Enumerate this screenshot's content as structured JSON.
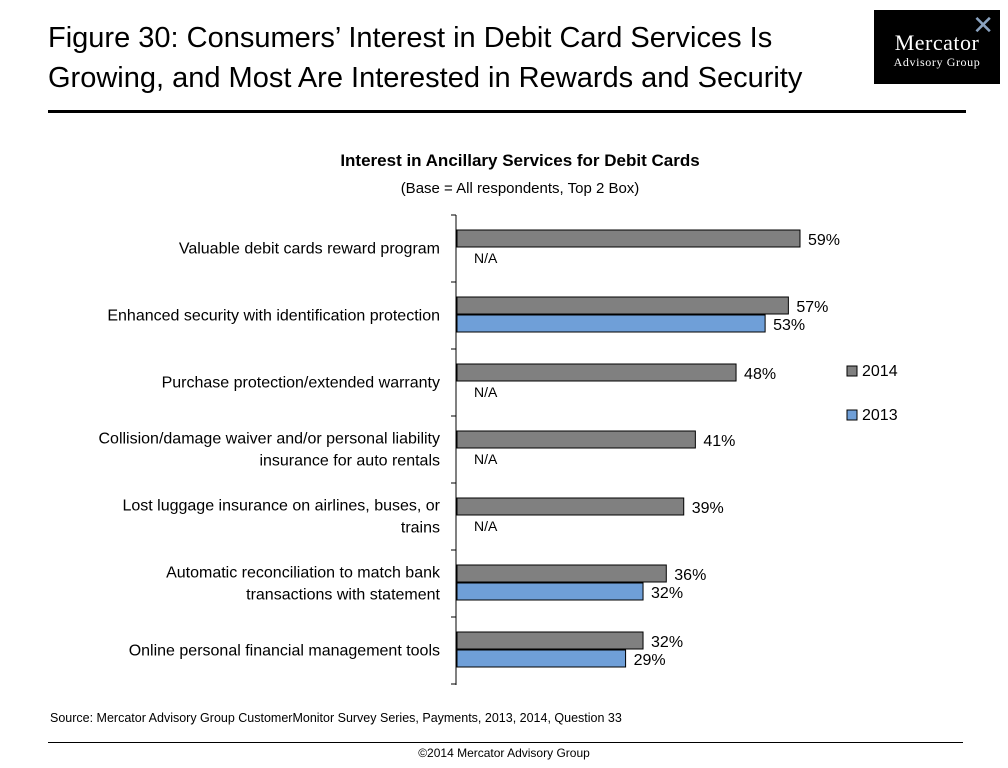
{
  "header": {
    "title_line1": "Figure 30: Consumers’ Interest in Debit Card Services Is",
    "title_line2": "Growing, and Most Are Interested in Rewards and Security"
  },
  "logo": {
    "line1": "Mercator",
    "line2": "Advisory Group"
  },
  "chart_data": {
    "type": "bar",
    "orientation": "horizontal",
    "title": "Interest in Ancillary Services for Debit Cards",
    "subtitle": "(Base = All respondents, Top 2 Box)",
    "categories": [
      [
        "Valuable debit cards reward program"
      ],
      [
        "Enhanced security with identification protection"
      ],
      [
        "Purchase protection/extended warranty"
      ],
      [
        "Collision/damage waiver and/or personal liability",
        "insurance for auto rentals"
      ],
      [
        "Lost luggage insurance on airlines, buses, or",
        "trains"
      ],
      [
        "Automatic reconciliation to match bank",
        "transactions with statement"
      ],
      [
        "Online personal financial management tools"
      ]
    ],
    "series": [
      {
        "name": "2014",
        "color": "#808080",
        "values": [
          59,
          57,
          48,
          41,
          39,
          36,
          32
        ]
      },
      {
        "name": "2013",
        "color": "#6f9fd8",
        "values": [
          null,
          53,
          null,
          null,
          null,
          32,
          29
        ]
      }
    ],
    "missing_label": "N/A",
    "value_suffix": "%",
    "legend_position": "right",
    "grid": false
  },
  "footer": {
    "source": "Source: Mercator Advisory Group CustomerMonitor Survey Series, Payments, 2013, 2014,  Question 33",
    "copyright": "©2014 Mercator Advisory Group"
  }
}
